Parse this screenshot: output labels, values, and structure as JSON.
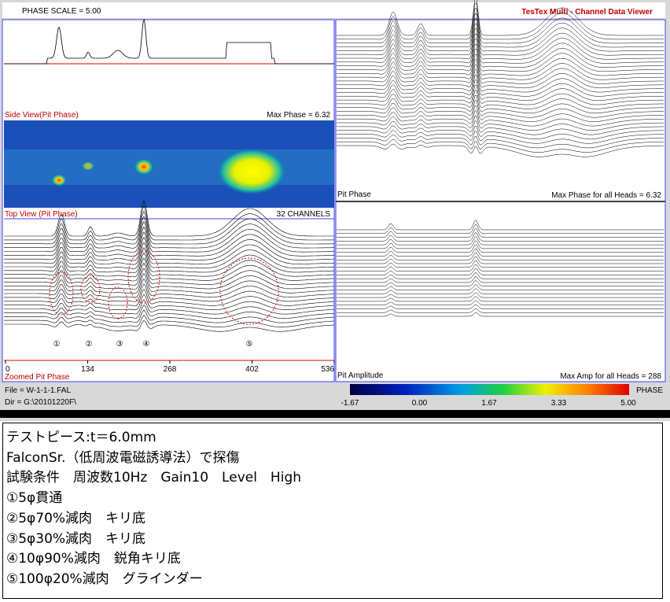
{
  "header": {
    "phase_scale": "PHASE SCALE =  5.00",
    "title": "TesTex  Multi - Channel  Data  Viewer"
  },
  "side_view": {
    "label": "Side View(Pit Phase)",
    "max": "Max Phase = 6.32"
  },
  "top_view": {
    "label": "Top View (Pit Phase)",
    "channels": "32 CHANNELS"
  },
  "zoomed": {
    "label": "Zoomed Pit Phase",
    "markers": [
      "①",
      "②",
      "③",
      "④",
      "⑤"
    ],
    "ticks": [
      "0",
      "134",
      "268",
      "402",
      "536"
    ]
  },
  "file": {
    "file": "File = W-1-1-1.FAL",
    "dir": "Dir = G:\\20101220F\\"
  },
  "pit_phase": {
    "label": "Pit Phase",
    "max": "Max Phase for all Heads = 6.32"
  },
  "pit_amplitude": {
    "label": "Pit Amplitude",
    "max": "Max Amp for all Heads =  288"
  },
  "colorbar": {
    "label": "PHASE",
    "ticks": [
      "-1.67",
      "0.00",
      "1.67",
      "3.33",
      "5.00"
    ]
  },
  "notes": [
    "テストピース:t＝6.0mm",
    "FalconSr.（低周波電磁誘導法）で探傷",
    "試験条件　周波数10Hz　Gain10　Level　High",
    "①5φ貫通",
    "②5φ70%減肉　キリ底",
    "③5φ30%減肉　キリ底",
    "④10φ90%減肉　鋭角キリ底",
    "⑤100φ20%減肉　グラインダー"
  ]
}
